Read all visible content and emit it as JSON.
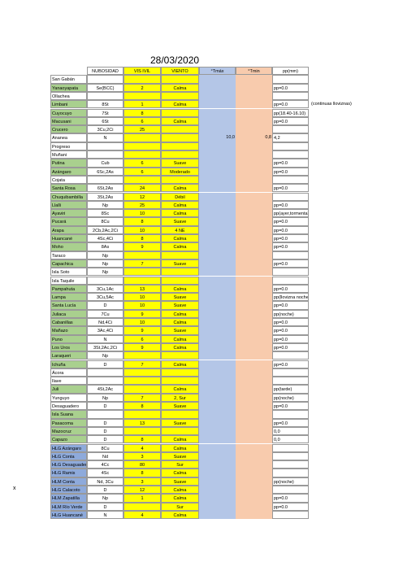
{
  "header": {
    "title": "28/03/2020",
    "side_mark": "x"
  },
  "table": {
    "columns": [
      "NUBOSIDAD",
      "VIS IVIL",
      "VIENTO",
      "°Tmáx",
      "°Tmin",
      "pp(mm)"
    ],
    "colors": {
      "green": "#a9d08e",
      "white": "#ffffff",
      "blue": "#8eaadb",
      "yellow": "#ffff00",
      "tmax": "#b4c6e7",
      "tmin": "#f8cbad"
    },
    "rows": [
      [
        "San Gabán",
        null,
        null,
        null,
        null,
        null,
        null,
        null,
        "white"
      ],
      [
        "Yanaoyapata",
        "Se(BCC)",
        "2",
        "Calma",
        null,
        null,
        "pp=0.0",
        null,
        "green"
      ],
      [
        "Ollachea",
        null,
        null,
        null,
        null,
        null,
        null,
        null,
        "white"
      ],
      [
        "Limbani",
        "8St",
        "1",
        "Calma",
        null,
        null,
        "pp=0.0",
        "(continuas lloviznas)",
        "green"
      ],
      [
        "Cuyocuyo",
        "7St",
        "8",
        null,
        null,
        null,
        "pp(18.40-16.10)",
        null,
        "green"
      ],
      [
        "Macusani",
        "6St",
        "6",
        "Calma",
        null,
        null,
        "pp=0.0",
        null,
        "green"
      ],
      [
        "Crucero",
        "3Cu,2Ci",
        "25",
        null,
        null,
        null,
        null,
        null,
        "green"
      ],
      [
        "Ananea",
        "N",
        null,
        null,
        "10,0",
        "0,8",
        "4,2",
        null,
        "white"
      ],
      [
        "Progreso",
        null,
        null,
        null,
        null,
        null,
        null,
        null,
        "white"
      ],
      [
        "Muñani",
        null,
        null,
        null,
        null,
        null,
        null,
        null,
        "white"
      ],
      [
        "Putina",
        "Cub",
        "6",
        "Suave",
        null,
        null,
        "pp=0.0",
        null,
        "green"
      ],
      [
        "Azángaro",
        "6Sc,2As",
        "6",
        "Moderado",
        null,
        null,
        "pp=0.0",
        null,
        "green"
      ],
      [
        "Cojata",
        null,
        null,
        null,
        null,
        null,
        null,
        null,
        "white"
      ],
      [
        "Santa Rosa",
        "6St,2As",
        "24",
        "Calma",
        null,
        null,
        "pp=0.0",
        null,
        "green"
      ],
      [
        "Chuquibambilla",
        "3St,2As",
        "12",
        "Débil",
        null,
        null,
        null,
        null,
        "green"
      ],
      [
        "Llalli",
        "Np",
        "25",
        "Calma",
        null,
        null,
        "pp=0.0",
        null,
        "green"
      ],
      [
        "Ayaviri",
        "8Sc",
        "10",
        "Calma",
        null,
        null,
        "pp(ayer,tormenta)",
        null,
        "green"
      ],
      [
        "Pucará",
        "8Cu",
        "8",
        "Suave",
        null,
        null,
        "pp=0.0",
        null,
        "green"
      ],
      [
        "Arapa",
        "2Cb,2Ac,2Ci",
        "10",
        "4 NE",
        null,
        null,
        "pp=0.0",
        null,
        "green"
      ],
      [
        "Huancané",
        "4Sc,4Ci",
        "8",
        "Calma",
        null,
        null,
        "pp=0.0",
        null,
        "green"
      ],
      [
        "Moho",
        "8As",
        "9",
        "Calma",
        null,
        null,
        "pp=0.0",
        null,
        "green"
      ],
      [
        "Taraco",
        "Np",
        null,
        null,
        null,
        null,
        null,
        null,
        "white"
      ],
      [
        "Capachica",
        "Np",
        "7",
        "Suave",
        null,
        null,
        "pp=0.0",
        null,
        "green"
      ],
      [
        "Isla Soto",
        "Np",
        null,
        null,
        null,
        null,
        null,
        null,
        "white"
      ],
      [
        "Isla Taquile",
        null,
        null,
        null,
        null,
        null,
        null,
        null,
        "white"
      ],
      [
        "Pampahuta",
        "3Cu,1Ac",
        "13",
        "Calma",
        null,
        null,
        "pp=0.0",
        null,
        "green"
      ],
      [
        "Lampa",
        "3Cu,5Ac",
        "10",
        "Suave",
        null,
        null,
        "pp(llovizna noche)",
        null,
        "green"
      ],
      [
        "Santa Lucía",
        "D",
        "10",
        "Suave",
        null,
        null,
        "pp=0.0",
        null,
        "green"
      ],
      [
        "Juliaca",
        "7Cu",
        "9",
        "Calma",
        null,
        null,
        "pp(noche)",
        null,
        "green"
      ],
      [
        "Cabanillas",
        "Nd,4Ci",
        "10",
        "Calma",
        null,
        null,
        "pp=0.0",
        null,
        "green"
      ],
      [
        "Mañazo",
        "3Ac,4Ci",
        "9",
        "Suave",
        null,
        null,
        "pp=0.0",
        null,
        "green"
      ],
      [
        "Puno",
        "N",
        "6",
        "Calma",
        null,
        null,
        "pp=0.0",
        null,
        "green"
      ],
      [
        "Los Uros",
        "3St,2Ac,2Ci",
        "9",
        "Calma",
        null,
        null,
        "pp=0.0",
        null,
        "green"
      ],
      [
        "Laraqueri",
        "Np",
        null,
        null,
        null,
        null,
        null,
        null,
        "green"
      ],
      [
        "Ichuña",
        "D",
        "7",
        "Calma",
        null,
        null,
        "pp=0.0",
        null,
        "green"
      ],
      [
        "Ácora",
        null,
        null,
        null,
        null,
        null,
        null,
        null,
        "white"
      ],
      [
        "Ilave",
        null,
        null,
        null,
        null,
        null,
        null,
        null,
        "white"
      ],
      [
        "Juli",
        "4St,2Ac",
        null,
        "Calma",
        null,
        null,
        "pp(tarde)",
        null,
        "green"
      ],
      [
        "Yunguyo",
        "Np",
        "7",
        "2, Sur",
        null,
        null,
        "pp(noche)",
        null,
        "white"
      ],
      [
        "Desaguadero",
        "D",
        "8",
        "Suave",
        null,
        null,
        "pp=0.0",
        null,
        "white"
      ],
      [
        "Isla Suana",
        null,
        null,
        null,
        null,
        null,
        null,
        null,
        "green"
      ],
      [
        "Pasacoma",
        "D",
        "13",
        "Suave",
        null,
        null,
        "pp=0.0",
        null,
        "green"
      ],
      [
        "Mazocruz",
        "D",
        null,
        null,
        null,
        null,
        "0,0",
        null,
        "green"
      ],
      [
        "Capazo",
        "D",
        "8",
        "Calma",
        null,
        null,
        "0,0",
        null,
        "green"
      ],
      [
        "HLG Azángaro",
        "8Cu",
        "4",
        "Calma",
        null,
        null,
        null,
        null,
        "blue"
      ],
      [
        "HLG Conta",
        "Nd",
        "3",
        "Suave",
        null,
        null,
        null,
        null,
        "blue"
      ],
      [
        "HLG Desaguadero",
        "4Cc",
        "80",
        "Sur",
        null,
        null,
        null,
        null,
        "blue"
      ],
      [
        "HLG Ramis",
        "4Sc",
        "8",
        "Calma",
        null,
        null,
        null,
        null,
        "blue"
      ],
      [
        "HLM Conta",
        "Nd, 3Cu",
        "3",
        "Suave",
        null,
        null,
        "pp(noche)",
        null,
        "blue"
      ],
      [
        "HLG Calacoto",
        "D",
        "12",
        "Calma",
        null,
        null,
        null,
        null,
        "blue"
      ],
      [
        "HLM Zapatilla",
        "Np",
        "1",
        "Calma",
        null,
        null,
        "pp=0.0",
        null,
        "blue"
      ],
      [
        "HLM Río Verde",
        "D",
        null,
        "Sur",
        null,
        null,
        "pp=0.0",
        null,
        "blue"
      ],
      [
        "HLG Huancané",
        "N",
        "4",
        "Calma",
        null,
        null,
        null,
        null,
        "blue"
      ]
    ]
  }
}
